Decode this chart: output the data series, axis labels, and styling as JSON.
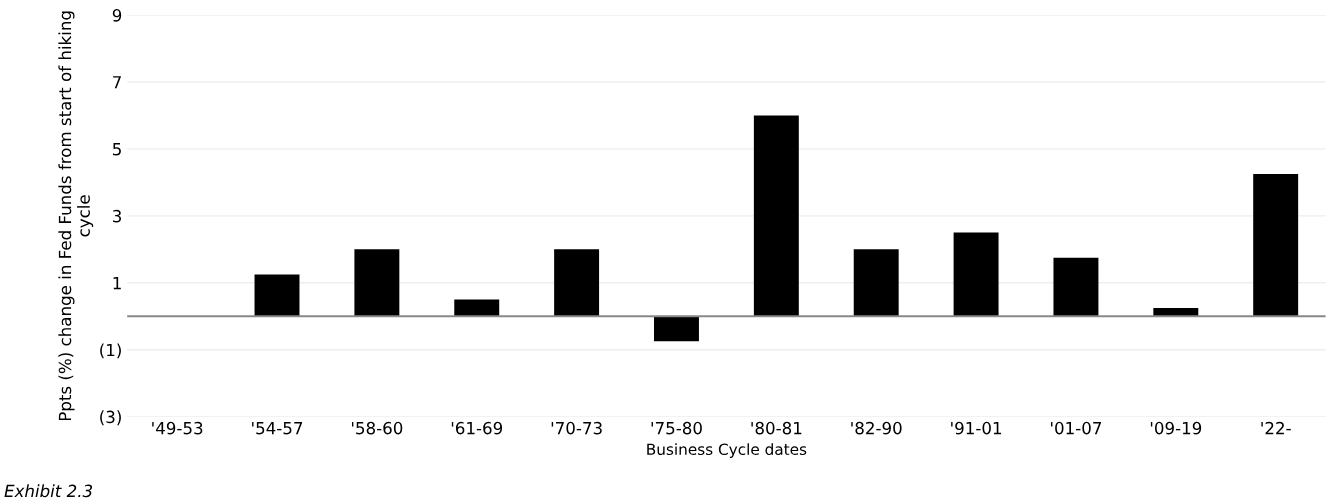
{
  "chart_data": {
    "type": "bar",
    "xlabel": "Business Cycle dates",
    "ylabel": "Ppts (%) change in Fed Funds from start of hiking cycle",
    "categories": [
      "'49-53",
      "'54-57",
      "'58-60",
      "'61-69",
      "'70-73",
      "'75-80",
      "'80-81",
      "'82-90",
      "'91-01",
      "'01-07",
      "'09-19",
      "'22-"
    ],
    "values": [
      0,
      1.25,
      2.0,
      0.5,
      2.0,
      -0.75,
      6.0,
      2.0,
      2.5,
      1.75,
      0.25,
      4.25
    ],
    "color": "#000000",
    "ylim": [
      -3,
      9
    ],
    "yticks": [
      {
        "value": -3,
        "label": "(3)"
      },
      {
        "value": -1,
        "label": "(1)"
      },
      1,
      3,
      5,
      7,
      9
    ],
    "grid": "y",
    "annotations": [
      "Exhibit 2.3"
    ]
  }
}
